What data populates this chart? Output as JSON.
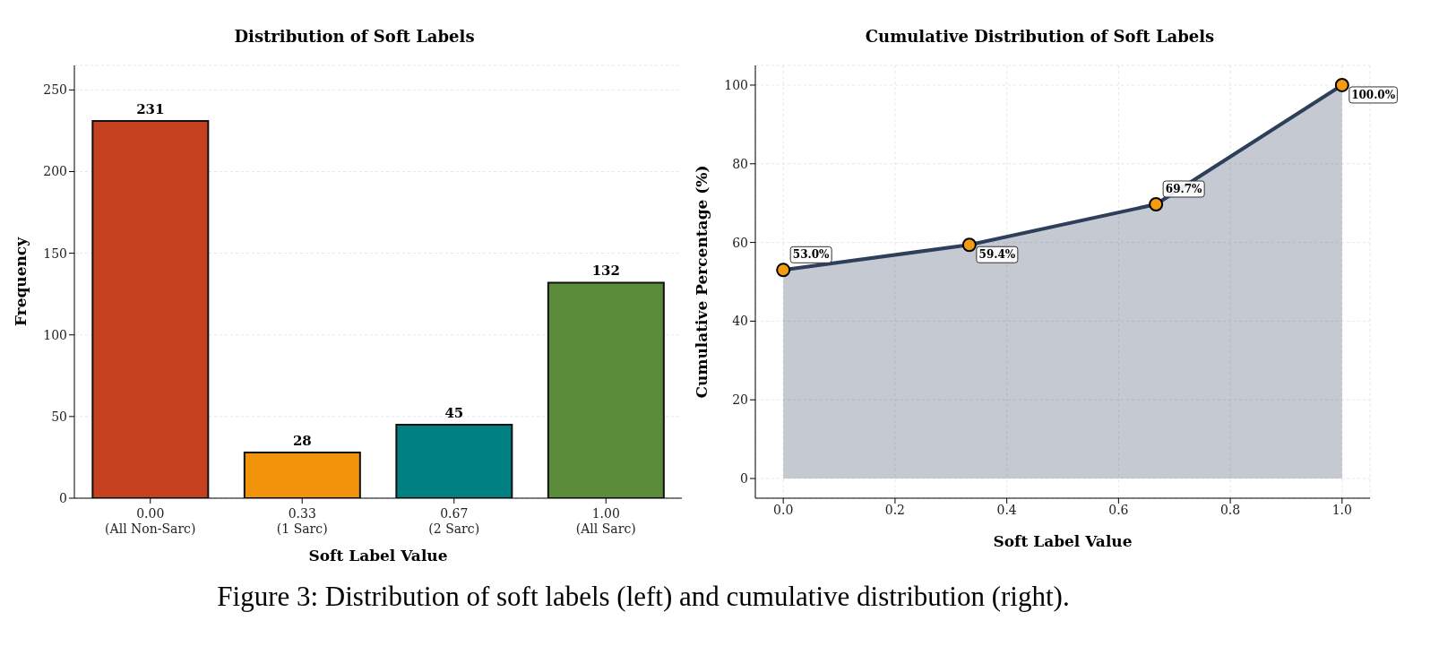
{
  "chart_data": [
    {
      "type": "bar",
      "title": "Distribution of Soft Labels",
      "xlabel": "Soft Label Value",
      "ylabel": "Frequency",
      "categories": [
        "0.00\n(All Non-Sarc)",
        "0.33\n(1 Sarc)",
        "0.67\n(2 Sarc)",
        "1.00\n(All Sarc)"
      ],
      "values": [
        231,
        28,
        45,
        132
      ],
      "colors": [
        "#c4401e",
        "#f0920a",
        "#008080",
        "#5b8c3a"
      ],
      "ylim": [
        0,
        265
      ],
      "yticks": [
        0,
        50,
        100,
        150,
        200,
        250
      ],
      "grid": "y",
      "data_labels": true,
      "annotations": [
        "Figure 3: Distribution of soft labels (left) and cumulative distribution (right)."
      ]
    },
    {
      "type": "area",
      "title": "Cumulative Distribution of Soft Labels",
      "xlabel": "Soft Label Value",
      "ylabel": "Cumulative Percentage (%)",
      "x": [
        0,
        0.333,
        0.667,
        1.0
      ],
      "series": [
        {
          "type": "area",
          "color": "#2e3f5c",
          "colors": [
            "#f39c12",
            "#f39c12",
            "#f39c12",
            "#f39c12"
          ],
          "values": [
            53.0,
            59.4,
            69.7,
            100.0
          ],
          "value_labels": [
            "53.0%",
            "59.4%",
            "69.7%",
            "100.0%"
          ]
        }
      ],
      "marker": "circle",
      "line_style": "solid",
      "xlim": [
        -0.05,
        1.05
      ],
      "xticks": [
        {
          "value": 0,
          "label": "0.0"
        },
        0.2,
        0.4,
        0.6,
        0.8,
        {
          "value": 1,
          "label": "1.0"
        }
      ],
      "ylim": [
        -5,
        105
      ],
      "yticks": [
        0,
        20,
        40,
        60,
        80,
        100
      ],
      "grid": true
    }
  ]
}
